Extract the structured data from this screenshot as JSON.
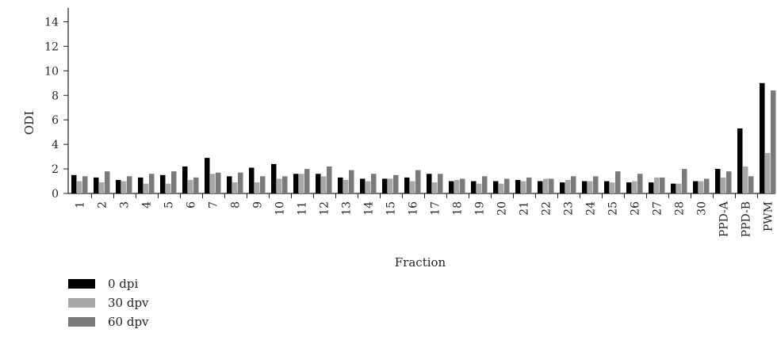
{
  "chart_data": {
    "type": "bar",
    "title": "",
    "xlabel": "Fraction",
    "ylabel": "ODI",
    "ylim": [
      0,
      15
    ],
    "yticks": [
      0,
      2,
      4,
      6,
      8,
      10,
      12,
      14
    ],
    "grid": false,
    "legend_position": "bottom-left",
    "categories": [
      "1",
      "2",
      "3",
      "4",
      "5",
      "6",
      "7",
      "8",
      "9",
      "10",
      "11",
      "12",
      "13",
      "14",
      "15",
      "16",
      "17",
      "18",
      "19",
      "20",
      "21",
      "22",
      "23",
      "24",
      "25",
      "26",
      "27",
      "28",
      "30",
      "PPD-A",
      "PPD-B",
      "PWM"
    ],
    "series": [
      {
        "name": "0 dpi",
        "color": "#000000",
        "values": [
          1.5,
          1.3,
          1.1,
          1.3,
          1.5,
          2.2,
          2.9,
          1.4,
          2.1,
          2.4,
          1.6,
          1.6,
          1.3,
          1.2,
          1.2,
          1.3,
          1.6,
          1.0,
          1.0,
          1.0,
          1.1,
          1.0,
          0.9,
          1.0,
          1.0,
          0.9,
          0.9,
          0.8,
          1.0,
          2.0,
          5.3,
          9.0
        ]
      },
      {
        "name": "30 dpv",
        "color": "#a8a8a8",
        "values": [
          1.0,
          0.9,
          1.0,
          0.8,
          0.8,
          1.1,
          1.6,
          0.9,
          0.9,
          1.2,
          1.6,
          1.4,
          1.1,
          1.0,
          1.2,
          1.0,
          0.9,
          1.1,
          0.8,
          0.8,
          1.0,
          1.2,
          1.1,
          1.0,
          0.9,
          1.0,
          1.3,
          0.8,
          1.0,
          1.3,
          2.2,
          3.3
        ]
      },
      {
        "name": "60 dpv",
        "color": "#7a7a7a",
        "values": [
          1.4,
          1.8,
          1.4,
          1.6,
          1.8,
          1.3,
          1.7,
          1.7,
          1.4,
          1.4,
          2.0,
          2.2,
          1.9,
          1.6,
          1.5,
          1.9,
          1.6,
          1.2,
          1.4,
          1.2,
          1.3,
          1.2,
          1.4,
          1.4,
          1.8,
          1.6,
          1.3,
          2.0,
          1.2,
          1.8,
          1.4,
          8.4
        ]
      }
    ]
  }
}
